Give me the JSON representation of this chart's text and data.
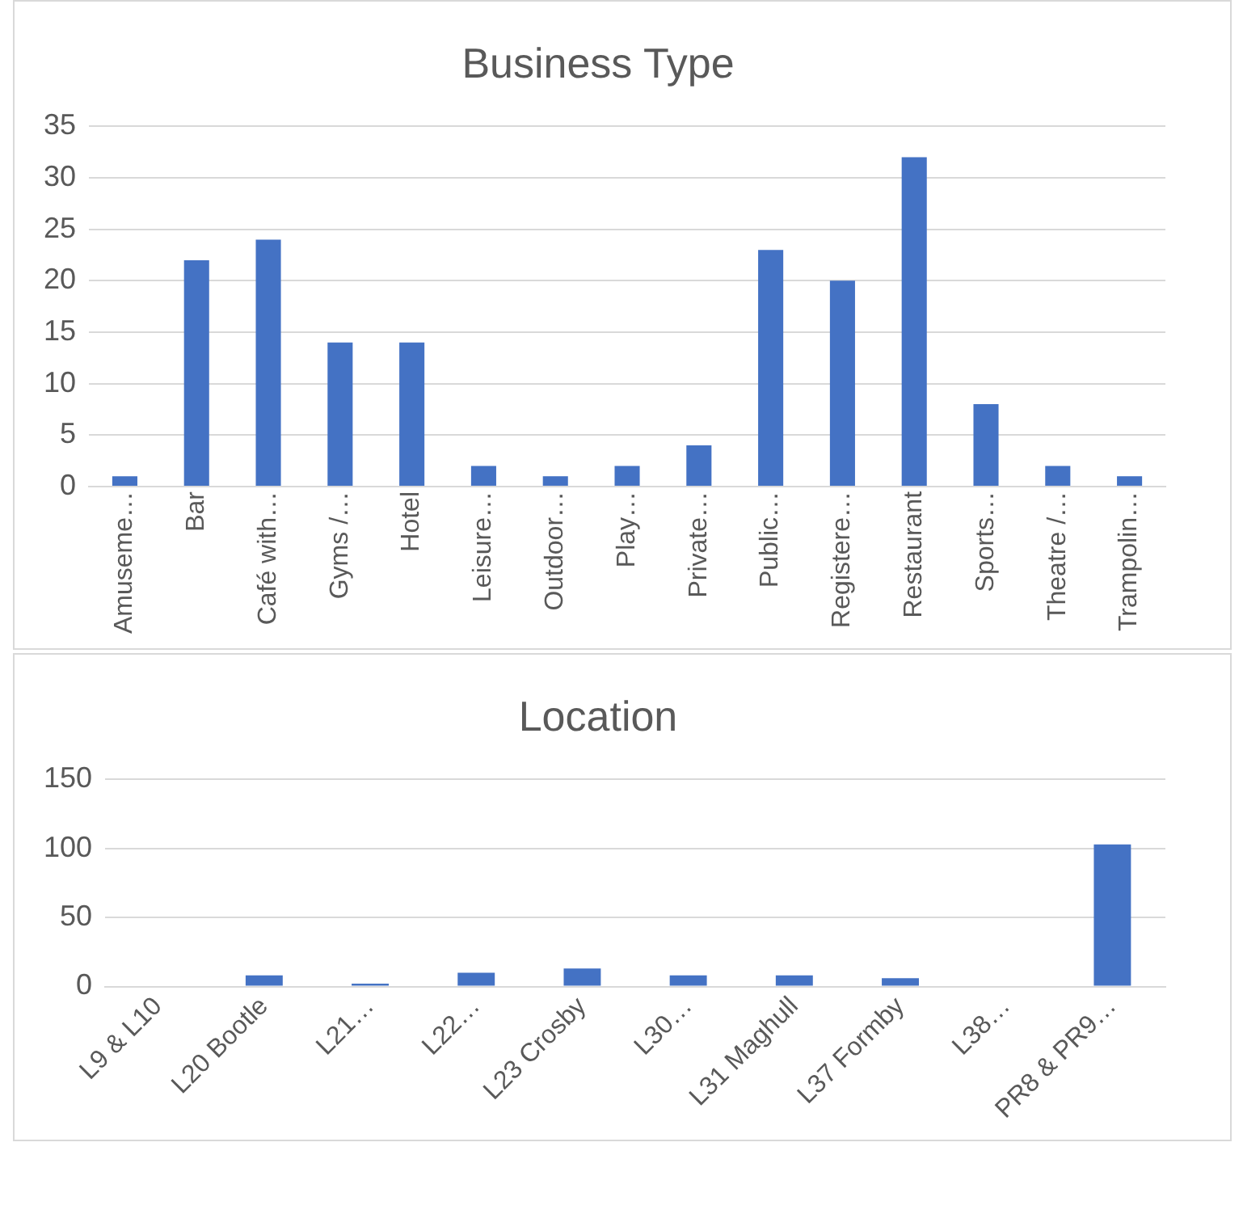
{
  "chart_data": [
    {
      "type": "bar",
      "title": "Business Type",
      "categories": [
        "Amuseme…",
        "Bar",
        "Café with…",
        "Gyms /…",
        "Hotel",
        "Leisure…",
        "Outdoor…",
        "Play…",
        "Private…",
        "Public…",
        "Registere…",
        "Restaurant",
        "Sports…",
        "Theatre /…",
        "Trampolin…"
      ],
      "values": [
        1,
        22,
        24,
        14,
        14,
        2,
        1,
        2,
        4,
        23,
        20,
        32,
        8,
        2,
        1
      ],
      "color": "#4472c4",
      "ylim": [
        0,
        35
      ],
      "yticks": [
        0,
        5,
        10,
        15,
        20,
        25,
        30,
        35
      ],
      "grid": "y",
      "legend": false
    },
    {
      "type": "bar",
      "title": "Location",
      "categories": [
        "L9 & L10",
        "L20 Bootle",
        "L21…",
        "L22…",
        "L23 Crosby",
        "L30…",
        "L31 Maghull",
        "L37 Formby",
        "L38…",
        "PR8 & PR9…"
      ],
      "values": [
        0,
        8,
        2,
        10,
        13,
        8,
        8,
        6,
        0,
        103
      ],
      "color": "#4472c4",
      "ylim": [
        0,
        150
      ],
      "yticks": [
        0,
        50,
        100,
        150
      ],
      "grid": "y",
      "legend": false
    }
  ]
}
